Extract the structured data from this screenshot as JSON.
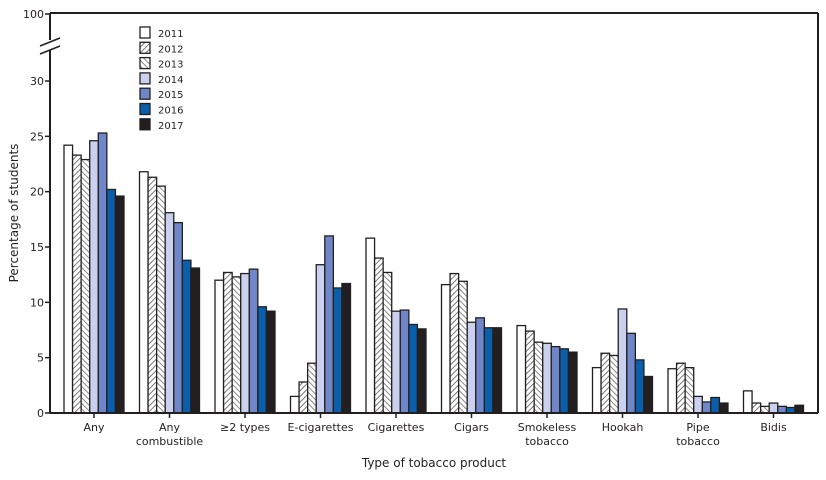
{
  "chart_data": {
    "type": "bar",
    "title": "",
    "xlabel": "Type of tobacco product",
    "ylabel": "Percentage of students",
    "ylim": [
      0,
      30
    ],
    "y_break_top_label": "100",
    "yticks": [
      0,
      5,
      10,
      15,
      20,
      25,
      30
    ],
    "grid": false,
    "legend_placement": "top-left",
    "categories": [
      [
        "Any"
      ],
      [
        "Any",
        "combustible"
      ],
      [
        "≥2 types"
      ],
      [
        "E-cigarettes"
      ],
      [
        "Cigarettes"
      ],
      [
        "Cigars"
      ],
      [
        "Smokeless",
        "tobacco"
      ],
      [
        "Hookah"
      ],
      [
        "Pipe",
        "tobacco"
      ],
      [
        "Bidis"
      ]
    ],
    "series": [
      {
        "name": "2011",
        "fill": "#ffffff",
        "pattern": "none",
        "values": [
          24.2,
          21.8,
          12.0,
          1.5,
          15.8,
          11.6,
          7.9,
          4.1,
          4.0,
          2.0
        ]
      },
      {
        "name": "2012",
        "fill": "#ffffff",
        "pattern": "hatch-forward",
        "values": [
          23.3,
          21.3,
          12.7,
          2.8,
          14.0,
          12.6,
          7.4,
          5.4,
          4.5,
          0.9
        ]
      },
      {
        "name": "2013",
        "fill": "#ffffff",
        "pattern": "hatch-back",
        "values": [
          22.9,
          20.5,
          12.3,
          4.5,
          12.7,
          11.9,
          6.4,
          5.2,
          4.1,
          0.6
        ]
      },
      {
        "name": "2014",
        "fill": "#c9d1ee",
        "pattern": "none",
        "values": [
          24.6,
          18.1,
          12.6,
          13.4,
          9.2,
          8.2,
          6.3,
          9.4,
          1.5,
          0.9
        ]
      },
      {
        "name": "2015",
        "fill": "#6f87c9",
        "pattern": "none",
        "values": [
          25.3,
          17.2,
          13.0,
          16.0,
          9.3,
          8.6,
          6.0,
          7.2,
          1.0,
          0.6
        ]
      },
      {
        "name": "2016",
        "fill": "#0b5ea9",
        "pattern": "none",
        "values": [
          20.2,
          13.8,
          9.6,
          11.3,
          8.0,
          7.7,
          5.8,
          4.8,
          1.4,
          0.5
        ]
      },
      {
        "name": "2017",
        "fill": "#231f20",
        "pattern": "none",
        "values": [
          19.6,
          13.1,
          9.2,
          11.7,
          7.6,
          7.7,
          5.5,
          3.3,
          0.9,
          0.7
        ]
      }
    ]
  }
}
